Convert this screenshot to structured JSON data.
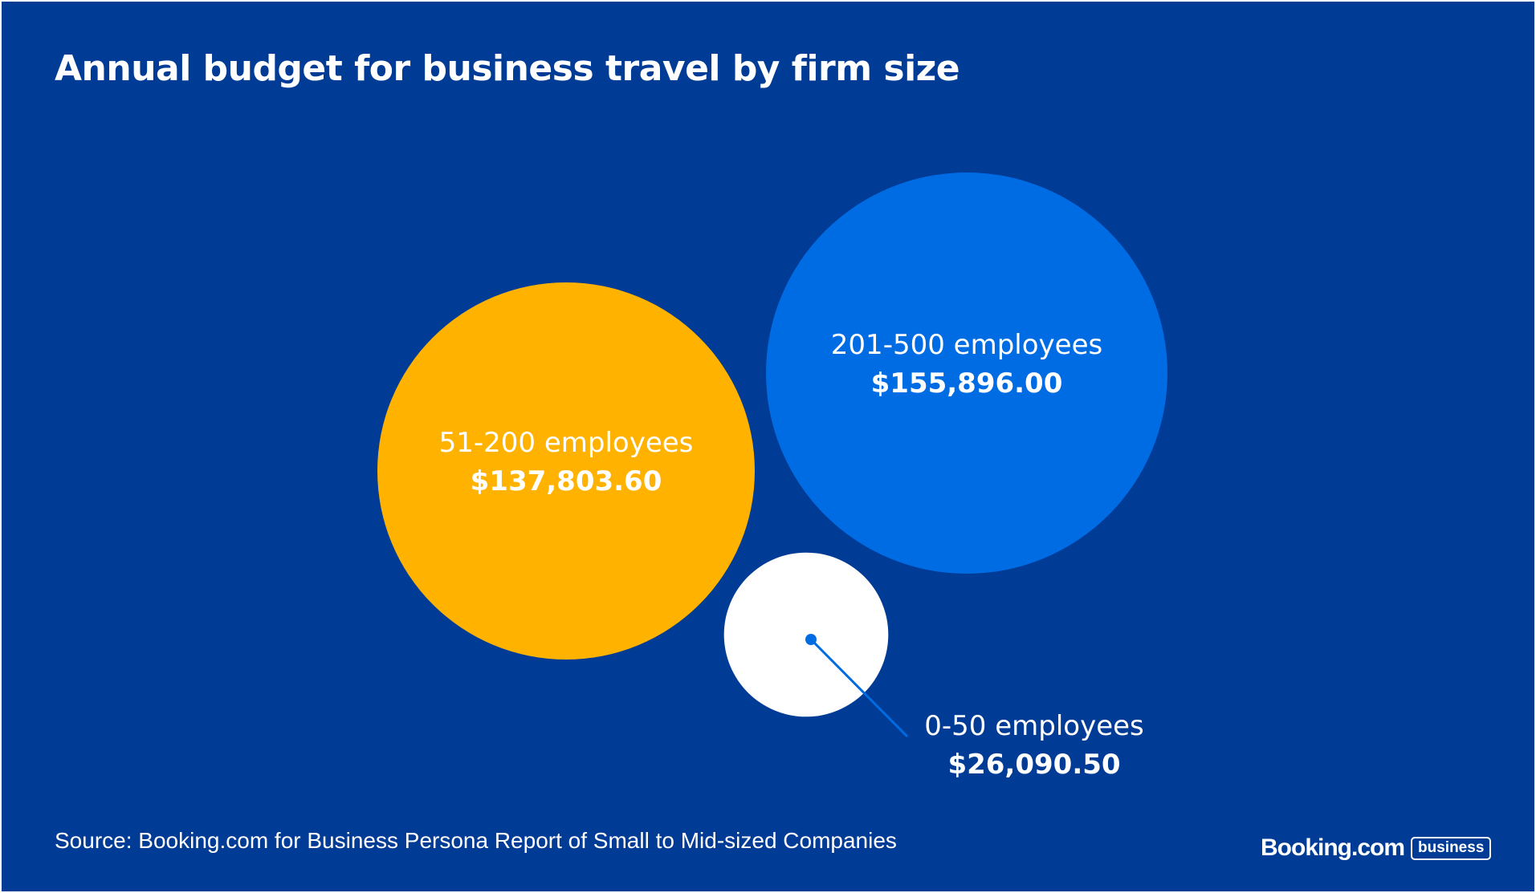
{
  "title": "Annual budget for business travel by firm size",
  "source": "Source: Booking.com for Business Persona Report of Small to Mid-sized Companies",
  "logo": {
    "wordmark": "Booking.com",
    "badge": "business"
  },
  "colors": {
    "background": "#003b95",
    "small": "#ffffff",
    "medium": "#ffb200",
    "large": "#006ce4",
    "callout": "#006ce4",
    "text": "#ffffff"
  },
  "chart_data": {
    "type": "bubble",
    "title": "Annual budget for business travel by firm size",
    "series": [
      {
        "category": "51-200 employees",
        "value": 137803.6,
        "value_label": "$137,803.60",
        "color": "#ffb200"
      },
      {
        "category": "201-500 employees",
        "value": 155896.0,
        "value_label": "$155,896.00",
        "color": "#006ce4"
      },
      {
        "category": "0-50 employees",
        "value": 26090.5,
        "value_label": "$26,090.50",
        "color": "#ffffff"
      }
    ]
  }
}
